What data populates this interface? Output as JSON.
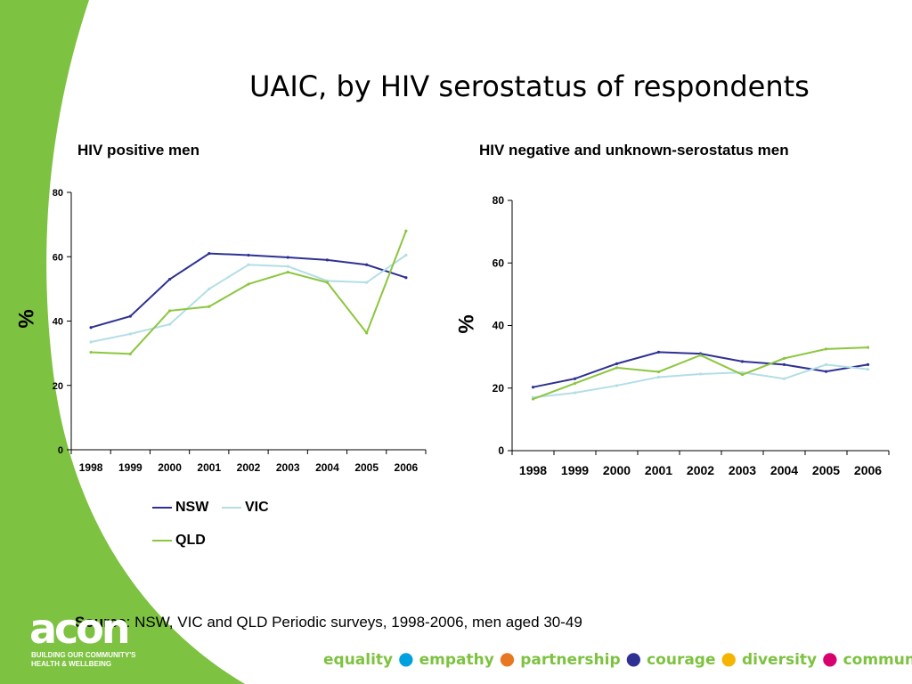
{
  "title": "UAIC, by HIV serostatus of respondents",
  "colors": {
    "background_green": "#7dc240",
    "NSW": "#2e3192",
    "VIC": "#b3dee6",
    "QLD": "#8cc63f",
    "footer_dot_1": "#00a0de",
    "footer_dot_2": "#e87722",
    "footer_dot_3": "#2e3192",
    "footer_dot_4": "#f4b400",
    "footer_dot_5": "#d6006f"
  },
  "chart_data": [
    {
      "type": "line",
      "title": "HIV positive men",
      "ylabel": "%",
      "xlabel": "",
      "x": [
        "1998",
        "1999",
        "2000",
        "2001",
        "2002",
        "2003",
        "2004",
        "2005",
        "2006"
      ],
      "ylim": [
        0,
        80
      ],
      "yticks": [
        "0",
        "20",
        "40",
        "60",
        "80"
      ],
      "legend": "bottom",
      "series": [
        {
          "name": "NSW",
          "color": "#2e3192",
          "values": [
            38,
            41.5,
            53,
            61,
            60.5,
            59.8,
            59,
            57.5,
            53.5
          ]
        },
        {
          "name": "VIC",
          "color": "#b3dee6",
          "values": [
            33.5,
            36,
            39,
            50,
            57.5,
            57,
            52.5,
            52,
            60.5
          ]
        },
        {
          "name": "QLD",
          "color": "#8cc63f",
          "values": [
            30.3,
            29.8,
            43.2,
            44.5,
            51.5,
            55.2,
            52,
            36.3,
            68
          ]
        }
      ]
    },
    {
      "type": "line",
      "title": "HIV negative and unknown-serostatus men",
      "ylabel": "%",
      "xlabel": "",
      "x": [
        "1998",
        "1999",
        "2000",
        "2001",
        "2002",
        "2003",
        "2004",
        "2005",
        "2006"
      ],
      "ylim": [
        0,
        80
      ],
      "yticks": [
        "0",
        "20",
        "40",
        "60",
        "80"
      ],
      "series": [
        {
          "name": "NSW",
          "color": "#2e3192",
          "values": [
            20.3,
            23,
            27.8,
            31.5,
            31,
            28.5,
            27.5,
            25.3,
            27.5
          ]
        },
        {
          "name": "VIC",
          "color": "#b3dee6",
          "values": [
            17,
            18.5,
            20.8,
            23.5,
            24.5,
            25,
            23,
            27.5,
            26
          ]
        },
        {
          "name": "QLD",
          "color": "#8cc63f",
          "values": [
            16.5,
            21.5,
            26.5,
            25.2,
            30.5,
            24.3,
            29.5,
            32.5,
            33
          ]
        }
      ]
    }
  ],
  "source": {
    "label": "Source",
    "text": ": NSW, VIC and QLD Periodic surveys, 1998-2006, men aged 30-49"
  },
  "logo": {
    "text": "acon",
    "tagline_1": "BUILDING OUR COMMUNITY'S",
    "tagline_2": "HEALTH & WELLBEING"
  },
  "footer": [
    "equality",
    "empathy",
    "partnership",
    "courage",
    "diversity",
    "community"
  ]
}
